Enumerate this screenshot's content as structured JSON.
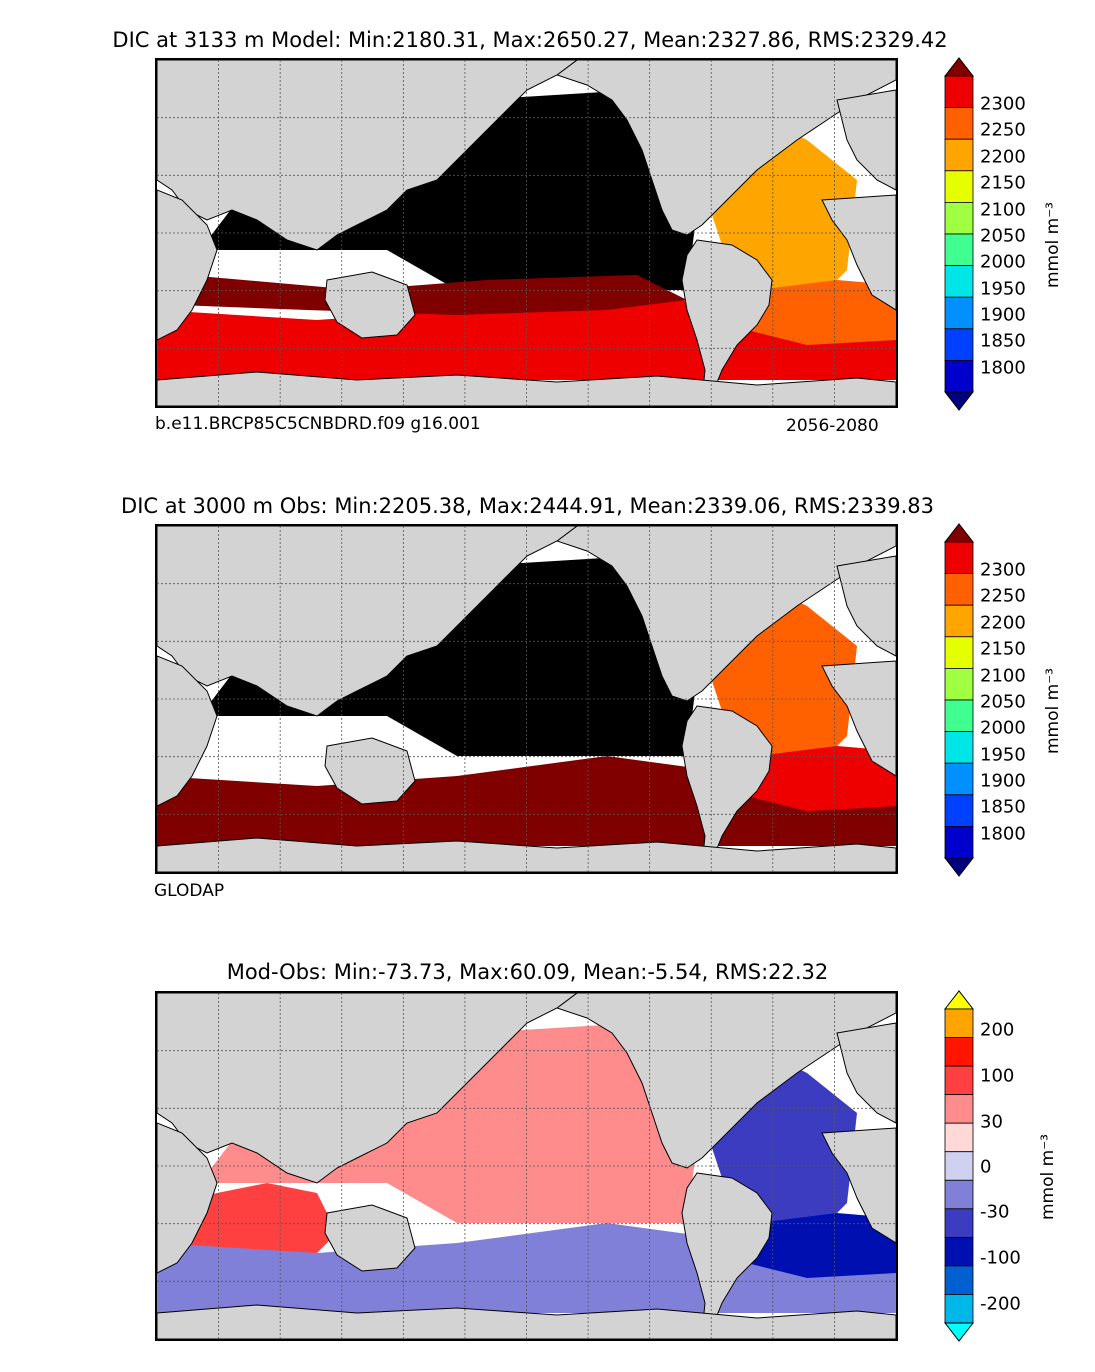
{
  "panels": [
    {
      "title": "DIC at 3133 m Model: Min:2180.31, Max:2650.27, Mean:2327.86, RMS:2329.42",
      "left_note": "b.e11.BRCP85C5CNBDRD.f09 g16.001",
      "right_note": "2056-2080",
      "units": "mmol m⁻³",
      "colorbar_ticks": [
        "2300",
        "2250",
        "2200",
        "2150",
        "2100",
        "2050",
        "2000",
        "1950",
        "1900",
        "1850",
        "1800"
      ],
      "colors": {
        "ocean_pacific": "#000000",
        "ocean_atlantic": "#FFA500",
        "ocean_south": "#EE0000",
        "ocean_south_deep": "#800000",
        "atlantic_south": "#FF6000",
        "land": "#D3D3D3",
        "nodata": "#FFFFFF"
      }
    },
    {
      "title": "DIC at 3000 m Obs: Min:2205.38, Max:2444.91, Mean:2339.06, RMS:2339.83",
      "left_note": "GLODAP",
      "right_note": "",
      "units": "mmol m⁻³",
      "colorbar_ticks": [
        "2300",
        "2250",
        "2200",
        "2150",
        "2100",
        "2050",
        "2000",
        "1950",
        "1900",
        "1850",
        "1800"
      ],
      "colors": {
        "ocean_pacific": "#000000",
        "ocean_atlantic": "#FF6000",
        "ocean_south": "#800000",
        "atlantic_south": "#EE0000",
        "land": "#D3D3D3",
        "nodata": "#FFFFFF"
      }
    },
    {
      "title": "Mod-Obs: Min:-73.73, Max:60.09, Mean:-5.54, RMS:22.32",
      "left_note": "",
      "right_note": "",
      "units": "mmol m⁻³",
      "colorbar_ticks": [
        "200",
        "100",
        "30",
        "0",
        "-30",
        "-100",
        "-200"
      ],
      "colors": {
        "ocean_pacific": "#FF8C8C",
        "ocean_atlantic": "#3C3CC0",
        "ocean_south": "#8080D8",
        "ocean_indian": "#FF4040",
        "atlantic_south": "#0010B0",
        "land": "#D3D3D3",
        "nodata": "#FFFFFF"
      }
    }
  ],
  "colorbars": {
    "dic": [
      "#000080",
      "#0000CD",
      "#0040FF",
      "#0090FF",
      "#00E5E5",
      "#40FF90",
      "#A0FF40",
      "#E5FF00",
      "#FFA500",
      "#FF6000",
      "#EE0000",
      "#800000"
    ],
    "diff": [
      "#00FFFF",
      "#00B8E8",
      "#0060D0",
      "#0010B0",
      "#3C3CC0",
      "#8080D8",
      "#D0D0F0",
      "#FFD8D8",
      "#FF8C8C",
      "#FF4040",
      "#FF1500",
      "#FFA500",
      "#FFFF00"
    ]
  }
}
